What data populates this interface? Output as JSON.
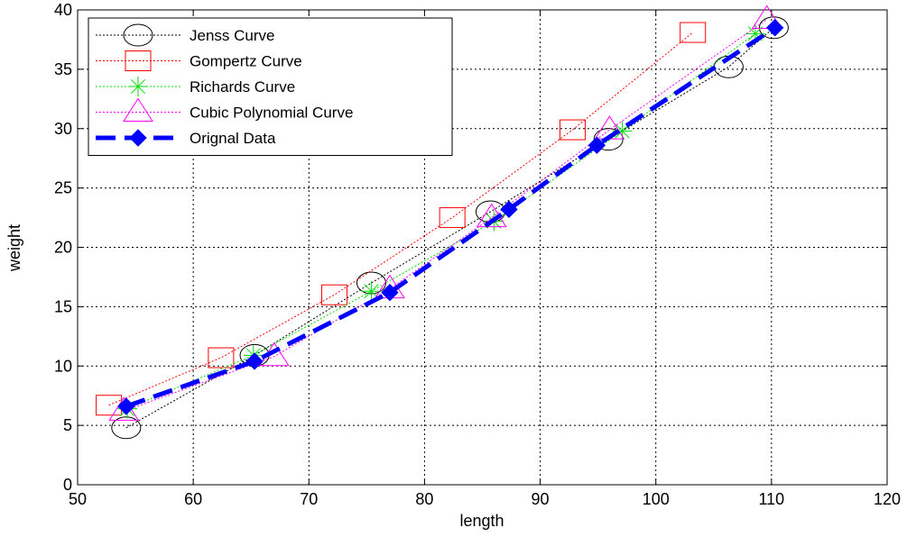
{
  "chart_data": {
    "type": "line",
    "title": "",
    "xlabel": "length",
    "ylabel": "weight",
    "xlim": [
      50,
      120
    ],
    "ylim": [
      0,
      40
    ],
    "xticks": [
      "50",
      "60",
      "70",
      "80",
      "90",
      "100",
      "110",
      "120"
    ],
    "yticks": [
      "0",
      "5",
      "10",
      "15",
      "20",
      "25",
      "30",
      "35",
      "40"
    ],
    "grid": true,
    "legend_position": "top-left",
    "series": [
      {
        "name": "Jenss Curve",
        "color": "#000000",
        "line": "dotted",
        "marker": "circle",
        "x": [
          54.2,
          65.3,
          75.4,
          85.7,
          95.9,
          106.3,
          110.2
        ],
        "y": [
          4.8,
          10.9,
          17.0,
          23.0,
          29.1,
          35.2,
          38.5
        ]
      },
      {
        "name": "Gompertz Curve",
        "color": "#ff0000",
        "line": "dotted",
        "marker": "square",
        "x": [
          52.7,
          62.4,
          72.2,
          82.4,
          92.8,
          103.2
        ],
        "y": [
          6.7,
          10.7,
          16.0,
          22.5,
          29.9,
          38.1
        ]
      },
      {
        "name": "Richards Curve",
        "color": "#00dd00",
        "line": "dotted",
        "marker": "asterisk",
        "x": [
          54.3,
          65.2,
          75.4,
          86.0,
          97.1,
          108.6
        ],
        "y": [
          6.4,
          10.9,
          16.3,
          22.2,
          29.8,
          38.0
        ]
      },
      {
        "name": "Cubic Polynomial Curve",
        "color": "#ff00ff",
        "line": "dotted",
        "marker": "triangle",
        "x": [
          54.0,
          67.0,
          77.0,
          85.8,
          96.0,
          109.6
        ],
        "y": [
          6.2,
          10.8,
          16.5,
          22.5,
          29.9,
          39.2
        ]
      },
      {
        "name": "Orignal Data",
        "color": "#0000ff",
        "line": "dashed-bold",
        "marker": "diamond",
        "x": [
          54.2,
          65.3,
          77.0,
          87.3,
          94.9,
          110.3
        ],
        "y": [
          6.6,
          10.4,
          16.2,
          23.2,
          28.6,
          38.5
        ]
      }
    ]
  }
}
